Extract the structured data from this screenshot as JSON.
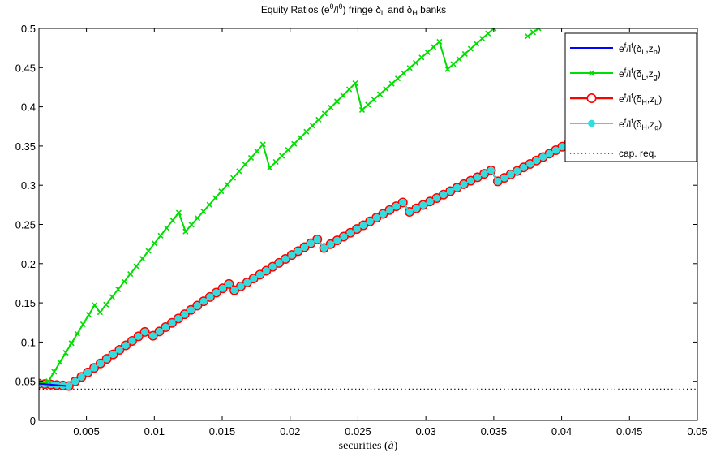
{
  "chart_data": {
    "type": "line",
    "title": {
      "prefix": "Equity Ratios (e",
      "sup1": "θ",
      "mid1": "/l",
      "sup2": "θ",
      "mid2": ") fringe δ",
      "sub1": "L",
      "mid3": " and δ",
      "sub2": "H",
      "suffix": " banks"
    },
    "xlabel": {
      "text": "securities (",
      "symbol": "ã",
      "close": ")"
    },
    "ylabel": "",
    "xlim": [
      0.0015,
      0.05
    ],
    "ylim": [
      0,
      0.5
    ],
    "x_ticks": [
      "0.005",
      "0.01",
      "0.015",
      "0.02",
      "0.025",
      "0.03",
      "0.035",
      "0.04",
      "0.045",
      "0.05"
    ],
    "y_ticks": [
      "0",
      "0.05",
      "0.1",
      "0.15",
      "0.2",
      "0.25",
      "0.3",
      "0.35",
      "0.4",
      "0.45",
      "0.5"
    ],
    "grid": false,
    "legend_position": "top-right",
    "cap_req": 0.04,
    "series": [
      {
        "label": {
          "base": "e",
          "sup1": "f",
          "mid": "/l",
          "sup2": "f",
          "open": "(δ",
          "sub1": "L",
          "comma": ",z",
          "sub2": "b",
          "close": ")"
        },
        "color": "#0000ff",
        "marker": "none",
        "points": [
          [
            0.0015,
            0.047
          ],
          [
            0.0035,
            0.044
          ]
        ]
      },
      {
        "label": {
          "base": "e",
          "sup1": "f",
          "mid": "/l",
          "sup2": "f",
          "open": "(δ",
          "sub1": "L",
          "comma": ",z",
          "sub2": "g",
          "close": ")"
        },
        "color": "#00dd00",
        "marker": "x",
        "points": [
          [
            0.0015,
            0.047
          ],
          [
            0.0022,
            0.05
          ],
          [
            0.0056,
            0.147
          ],
          [
            0.006,
            0.138
          ],
          [
            0.0118,
            0.265
          ],
          [
            0.0123,
            0.241
          ],
          [
            0.018,
            0.352
          ],
          [
            0.0185,
            0.322
          ],
          [
            0.0248,
            0.43
          ],
          [
            0.0253,
            0.396
          ],
          [
            0.031,
            0.483
          ],
          [
            0.0316,
            0.448
          ],
          [
            0.035,
            0.5
          ]
        ]
      },
      {
        "label": {
          "base": "e",
          "sup1": "f",
          "mid": "/l",
          "sup2": "f",
          "open": "(δ",
          "sub1": "H",
          "comma": ",z",
          "sub2": "b",
          "close": ")"
        },
        "color": "#ff0000",
        "marker": "o",
        "points": [
          [
            0.0015,
            0.047
          ],
          [
            0.0037,
            0.044
          ],
          [
            0.0093,
            0.113
          ],
          [
            0.0099,
            0.108
          ],
          [
            0.0155,
            0.174
          ],
          [
            0.0159,
            0.166
          ],
          [
            0.022,
            0.231
          ],
          [
            0.0225,
            0.22
          ],
          [
            0.0283,
            0.278
          ],
          [
            0.0288,
            0.266
          ],
          [
            0.0348,
            0.319
          ],
          [
            0.0353,
            0.305
          ],
          [
            0.041,
            0.358
          ],
          [
            0.0415,
            0.343
          ],
          [
            0.05,
            0.393
          ]
        ]
      },
      {
        "label": {
          "base": "e",
          "sup1": "f",
          "mid": "/l",
          "sup2": "f",
          "open": "(δ",
          "sub1": "H",
          "comma": ",z",
          "sub2": "g",
          "close": ")"
        },
        "color": "#33dddd",
        "marker": "dot",
        "points": [
          [
            0.0015,
            0.047
          ],
          [
            0.0037,
            0.044
          ],
          [
            0.0093,
            0.113
          ],
          [
            0.0099,
            0.108
          ],
          [
            0.0155,
            0.174
          ],
          [
            0.0159,
            0.166
          ],
          [
            0.022,
            0.231
          ],
          [
            0.0225,
            0.22
          ],
          [
            0.0283,
            0.278
          ],
          [
            0.0288,
            0.266
          ],
          [
            0.0348,
            0.319
          ],
          [
            0.0353,
            0.305
          ],
          [
            0.041,
            0.358
          ],
          [
            0.0415,
            0.343
          ],
          [
            0.05,
            0.393
          ]
        ]
      }
    ],
    "green_extra_segment": [
      [
        0.0375,
        0.49
      ],
      [
        0.0383,
        0.5
      ]
    ],
    "cap_label": "cap. req."
  }
}
